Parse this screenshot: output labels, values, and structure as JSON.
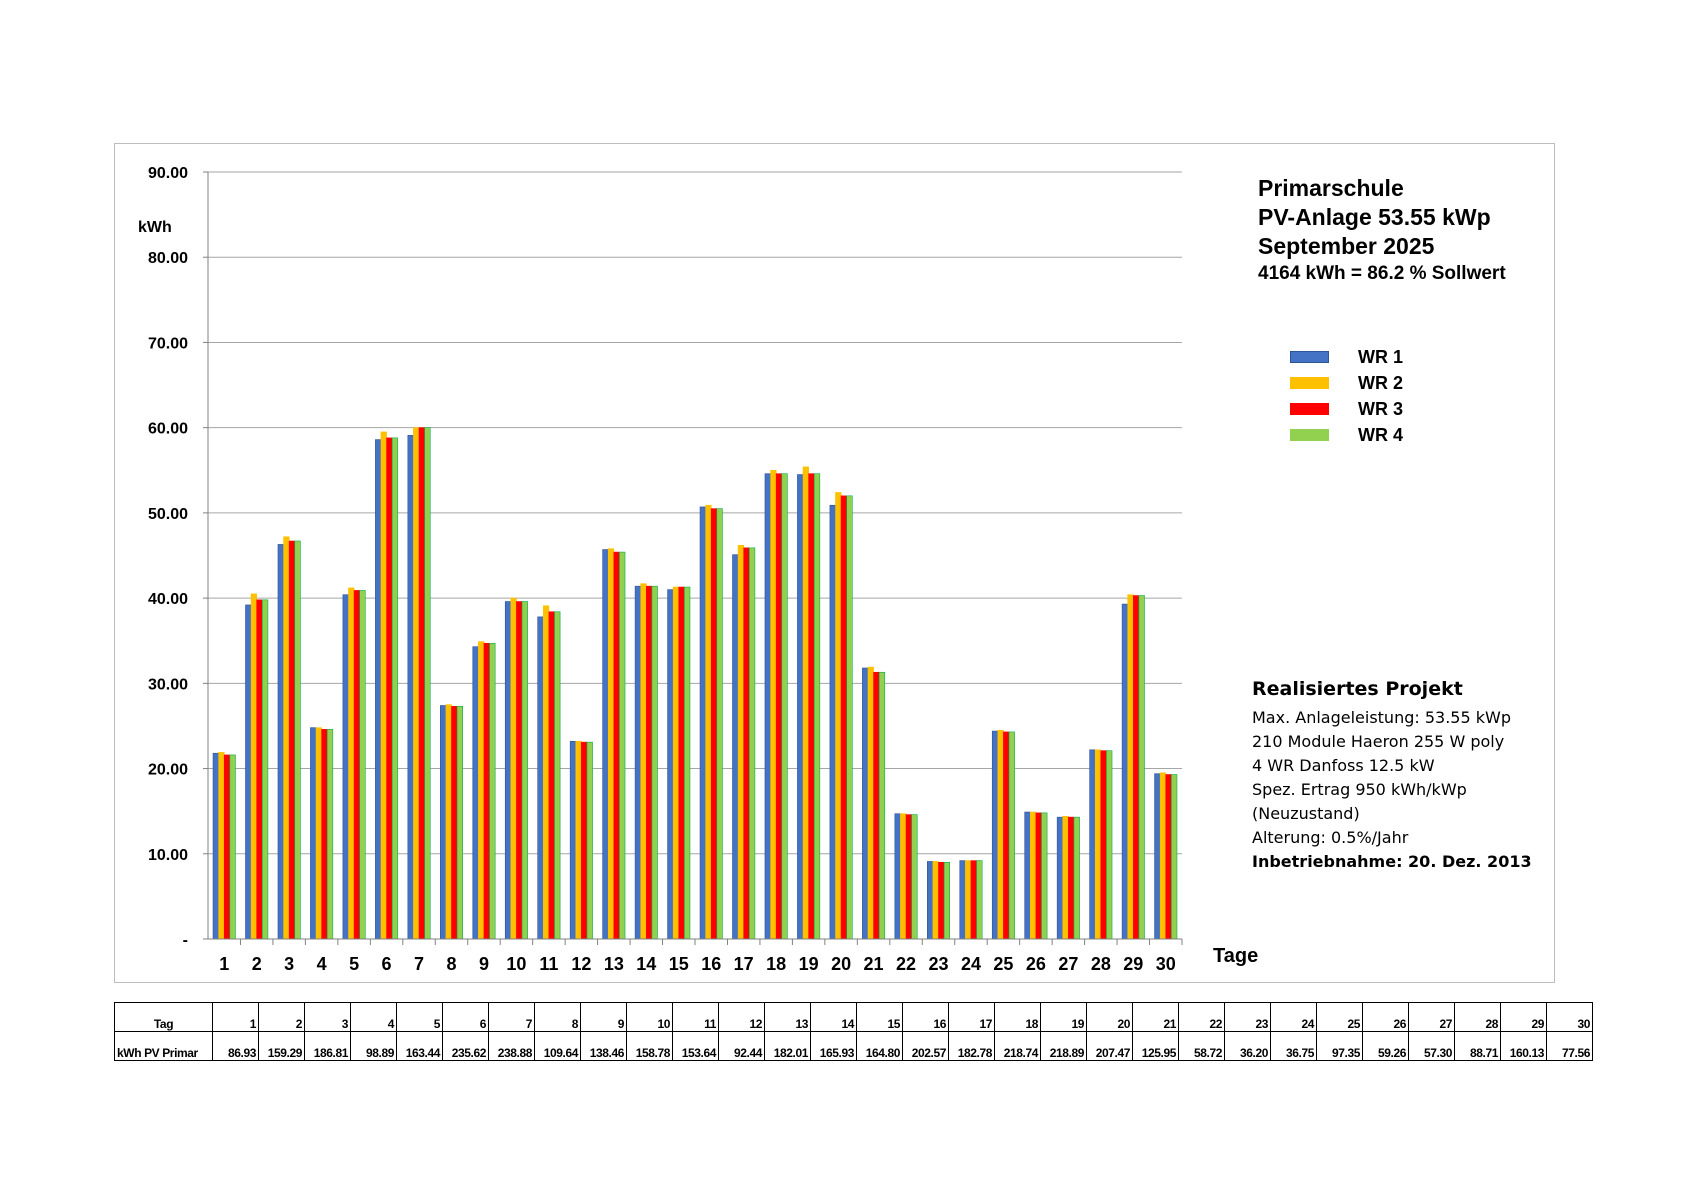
{
  "chart_data": {
    "type": "bar",
    "title": "Primarschule",
    "subtitle_lines": [
      "PV-Anlage 53.55 kWp",
      "September 2025"
    ],
    "summary": "4164 kWh = 86.2 %  Sollwert",
    "ylabel": "kWh",
    "xlabel": "Tage",
    "ylim": [
      0,
      90
    ],
    "y_ticks": [
      "-",
      "10.00",
      "20.00",
      "30.00",
      "40.00",
      "50.00",
      "60.00",
      "70.00",
      "80.00",
      "90.00"
    ],
    "grid": true,
    "legend_position": "right",
    "categories": [
      "1",
      "2",
      "3",
      "4",
      "5",
      "6",
      "7",
      "8",
      "9",
      "10",
      "11",
      "12",
      "13",
      "14",
      "15",
      "16",
      "17",
      "18",
      "19",
      "20",
      "21",
      "22",
      "23",
      "24",
      "25",
      "26",
      "27",
      "28",
      "29",
      "30"
    ],
    "series": [
      {
        "name": "WR 1",
        "color": "#4472C4",
        "values": [
          21.8,
          39.2,
          46.3,
          24.8,
          40.4,
          58.6,
          59.1,
          27.4,
          34.3,
          39.6,
          37.8,
          23.2,
          45.7,
          41.4,
          41.0,
          50.7,
          45.1,
          54.6,
          54.5,
          50.9,
          31.8,
          14.7,
          9.1,
          9.2,
          24.4,
          14.9,
          14.3,
          22.2,
          39.3,
          19.4
        ]
      },
      {
        "name": "WR 2",
        "color": "#FFC000",
        "values": [
          21.9,
          40.5,
          47.2,
          24.8,
          41.2,
          59.5,
          60.0,
          27.5,
          34.9,
          40.0,
          39.1,
          23.2,
          45.8,
          41.7,
          41.3,
          50.9,
          46.2,
          55.0,
          55.4,
          52.4,
          31.9,
          14.7,
          9.1,
          9.2,
          24.5,
          14.9,
          14.4,
          22.2,
          40.4,
          19.5
        ]
      },
      {
        "name": "WR 3",
        "color": "#FF0000",
        "values": [
          21.6,
          39.8,
          46.7,
          24.6,
          40.9,
          58.8,
          60.0,
          27.3,
          34.7,
          39.6,
          38.4,
          23.1,
          45.4,
          41.4,
          41.3,
          50.5,
          45.9,
          54.6,
          54.6,
          52.0,
          31.3,
          14.6,
          9.0,
          9.2,
          24.3,
          14.8,
          14.3,
          22.1,
          40.3,
          19.3
        ]
      },
      {
        "name": "WR 4",
        "color": "#92D050",
        "values": [
          21.6,
          39.8,
          46.7,
          24.6,
          40.9,
          58.8,
          60.0,
          27.3,
          34.7,
          39.6,
          38.4,
          23.1,
          45.4,
          41.4,
          41.3,
          50.5,
          45.9,
          54.6,
          54.6,
          52.0,
          31.3,
          14.6,
          9.0,
          9.2,
          24.3,
          14.8,
          14.3,
          22.1,
          40.3,
          19.3
        ]
      }
    ],
    "bar_edge_colors": {
      "WR 1": "#2F5597",
      "WR 2": "#FFC000",
      "WR 3": "#FF0000",
      "WR 4": "#00B050"
    }
  },
  "info": {
    "title": "Realisiertes Projekt",
    "lines": [
      "Max. Anlageleistung: 53.55 kWp",
      "210 Module Haeron 255 W poly",
      "4 WR Danfoss 12.5 kW",
      "Spez. Ertrag 950 kWh/kWp",
      "(Neuzustand)",
      "Alterung: 0.5%/Jahr"
    ],
    "bold_line": "Inbetriebnahme: 20. Dez. 2013"
  },
  "table": {
    "row1_header": "Tag",
    "row2_header": "kWh PV Primar",
    "days": [
      "1",
      "2",
      "3",
      "4",
      "5",
      "6",
      "7",
      "8",
      "9",
      "10",
      "11",
      "12",
      "13",
      "14",
      "15",
      "16",
      "17",
      "18",
      "19",
      "20",
      "21",
      "22",
      "23",
      "24",
      "25",
      "26",
      "27",
      "28",
      "29",
      "30"
    ],
    "values": [
      "86.93",
      "159.29",
      "186.81",
      "98.89",
      "163.44",
      "235.62",
      "238.88",
      "109.64",
      "138.46",
      "158.78",
      "153.64",
      "92.44",
      "182.01",
      "165.93",
      "164.80",
      "202.57",
      "182.78",
      "218.74",
      "218.89",
      "207.47",
      "125.95",
      "58.72",
      "36.20",
      "36.75",
      "97.35",
      "59.26",
      "57.30",
      "88.71",
      "160.13",
      "77.56"
    ]
  }
}
